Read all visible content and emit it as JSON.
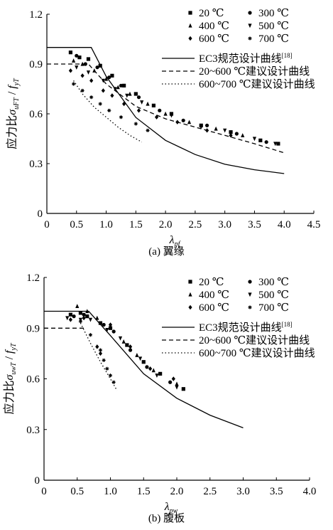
{
  "captions": {
    "a": "(a) 翼缘",
    "b": "(b) 腹板"
  },
  "chart_data": [
    {
      "type": "scatter",
      "ylabel_prefix": "应力比",
      "ylabel_num_main": "σ",
      "ylabel_num_sub": "uFT",
      "ylabel_den_main": "f",
      "ylabel_den_sub": "yT",
      "xlabel_main": "λ",
      "xlabel_sub": "pf",
      "xlim": [
        0,
        4.5
      ],
      "ylim": [
        0,
        1.2
      ],
      "xticks": [
        "0",
        "0.5",
        "1.0",
        "1.5",
        "2.0",
        "2.5",
        "3.0",
        "3.5",
        "4.0",
        "4.5"
      ],
      "yticks": [
        "0",
        "0.3",
        "0.6",
        "0.9",
        "1.2"
      ],
      "legend": {
        "series": [
          "20 ℃",
          "300 ℃",
          "400 ℃",
          "500 ℃",
          "600 ℃",
          "700 ℃"
        ],
        "curves": [
          "EC3规范设计曲线[18]",
          "20~600 ℃建议设计曲线",
          "600~700 ℃建议设计曲线"
        ],
        "placement": "top-right"
      },
      "curves": [
        {
          "name": "EC3规范设计曲线[18]",
          "style": "solid",
          "points": [
            [
              0,
              1.0
            ],
            [
              0.748,
              1.0
            ],
            [
              1.0,
              0.825
            ],
            [
              1.5,
              0.578
            ],
            [
              2.0,
              0.44
            ],
            [
              2.5,
              0.355
            ],
            [
              3.0,
              0.296
            ],
            [
              3.5,
              0.263
            ],
            [
              4.0,
              0.24
            ]
          ]
        },
        {
          "name": "20~600 ℃建议设计曲线",
          "style": "dashed",
          "points": [
            [
              0,
              0.9
            ],
            [
              0.7,
              0.9
            ],
            [
              1.0,
              0.78
            ],
            [
              1.5,
              0.645
            ],
            [
              2.0,
              0.57
            ],
            [
              2.5,
              0.52
            ],
            [
              3.0,
              0.47
            ],
            [
              3.5,
              0.42
            ],
            [
              4.0,
              0.365
            ]
          ]
        },
        {
          "name": "600~700 ℃建议设计曲线",
          "style": "dotted",
          "points": [
            [
              0.45,
              0.8
            ],
            [
              0.6,
              0.72
            ],
            [
              0.8,
              0.64
            ],
            [
              1.0,
              0.58
            ],
            [
              1.2,
              0.52
            ],
            [
              1.4,
              0.47
            ],
            [
              1.6,
              0.43
            ]
          ]
        }
      ],
      "series": [
        {
          "name": "20 ℃",
          "points": [
            [
              0.4,
              0.97
            ],
            [
              0.55,
              0.94
            ],
            [
              0.7,
              0.93
            ],
            [
              0.9,
              0.89
            ],
            [
              1.1,
              0.83
            ],
            [
              1.3,
              0.77
            ],
            [
              1.5,
              0.72
            ],
            [
              1.8,
              0.65
            ],
            [
              2.1,
              0.6
            ],
            [
              2.6,
              0.53
            ],
            [
              3.1,
              0.49
            ],
            [
              3.6,
              0.44
            ],
            [
              3.9,
              0.42
            ]
          ]
        },
        {
          "name": "300 ℃",
          "points": [
            [
              0.5,
              0.95
            ],
            [
              0.65,
              0.9
            ],
            [
              0.85,
              0.88
            ],
            [
              1.05,
              0.82
            ],
            [
              1.25,
              0.77
            ],
            [
              1.55,
              0.7
            ],
            [
              1.9,
              0.62
            ],
            [
              2.3,
              0.56
            ],
            [
              2.7,
              0.53
            ],
            [
              3.2,
              0.48
            ],
            [
              3.7,
              0.43
            ]
          ]
        },
        {
          "name": "400 ℃",
          "points": [
            [
              0.45,
              0.92
            ],
            [
              0.6,
              0.9
            ],
            [
              0.8,
              0.86
            ],
            [
              1.0,
              0.81
            ],
            [
              1.2,
              0.76
            ],
            [
              1.4,
              0.72
            ],
            [
              1.7,
              0.66
            ],
            [
              2.0,
              0.6
            ],
            [
              2.4,
              0.55
            ],
            [
              2.85,
              0.51
            ],
            [
              3.3,
              0.47
            ]
          ]
        },
        {
          "name": "500 ℃",
          "points": [
            [
              0.5,
              0.88
            ],
            [
              0.7,
              0.85
            ],
            [
              0.95,
              0.8
            ],
            [
              1.15,
              0.75
            ],
            [
              1.35,
              0.71
            ],
            [
              1.6,
              0.67
            ],
            [
              2.1,
              0.59
            ],
            [
              2.6,
              0.52
            ],
            [
              3.0,
              0.5
            ],
            [
              3.5,
              0.45
            ],
            [
              3.85,
              0.42
            ]
          ]
        },
        {
          "name": "600 ℃",
          "points": [
            [
              0.4,
              0.86
            ],
            [
              0.6,
              0.83
            ],
            [
              0.75,
              0.8
            ],
            [
              0.95,
              0.74
            ],
            [
              1.1,
              0.71
            ],
            [
              1.3,
              0.66
            ],
            [
              1.55,
              0.62
            ],
            [
              1.85,
              0.58
            ],
            [
              2.2,
              0.55
            ],
            [
              2.7,
              0.5
            ],
            [
              3.1,
              0.47
            ]
          ]
        },
        {
          "name": "700 ℃",
          "points": [
            [
              0.45,
              0.78
            ],
            [
              0.6,
              0.74
            ],
            [
              0.75,
              0.7
            ],
            [
              0.9,
              0.66
            ],
            [
              1.05,
              0.62
            ],
            [
              1.25,
              0.58
            ],
            [
              1.5,
              0.54
            ],
            [
              1.7,
              0.5
            ]
          ]
        }
      ]
    },
    {
      "type": "scatter",
      "ylabel_prefix": "应力比",
      "ylabel_num_main": "σ",
      "ylabel_num_sub": "uwT",
      "ylabel_den_main": "f",
      "ylabel_den_sub": "yT",
      "xlabel_main": "λ",
      "xlabel_sub": "pw",
      "xlim": [
        0,
        4.0
      ],
      "ylim": [
        0,
        1.2
      ],
      "xticks": [
        "0",
        "0.5",
        "1.0",
        "1.5",
        "2.0",
        "2.5",
        "3.0",
        "3.5",
        "4.0"
      ],
      "yticks": [
        "0",
        "0.3",
        "0.6",
        "0.9",
        "1.2"
      ],
      "legend": {
        "series": [
          "20 ℃",
          "300 ℃",
          "400 ℃",
          "500 ℃",
          "600 ℃",
          "700 ℃"
        ],
        "curves": [
          "EC3规范设计曲线[18]",
          "20~600 ℃建议设计曲线",
          "600~700 ℃建议设计曲线"
        ],
        "placement": "top-right"
      },
      "curves": [
        {
          "name": "EC3规范设计曲线[18]",
          "style": "solid",
          "points": [
            [
              0,
              1.0
            ],
            [
              0.673,
              1.0
            ],
            [
              1.0,
              0.856
            ],
            [
              1.5,
              0.63
            ],
            [
              2.0,
              0.485
            ],
            [
              2.5,
              0.385
            ],
            [
              3.0,
              0.31
            ]
          ]
        },
        {
          "name": "20~600 ℃建议设计曲线",
          "style": "dashed",
          "points": [
            [
              0,
              0.9
            ],
            [
              0.6,
              0.9
            ]
          ]
        },
        {
          "name": "600~700 ℃建议设计曲线",
          "style": "dotted",
          "points": [
            [
              0.55,
              0.93
            ],
            [
              0.7,
              0.81
            ],
            [
              0.85,
              0.7
            ],
            [
              1.0,
              0.6
            ],
            [
              1.1,
              0.53
            ]
          ]
        }
      ],
      "series": [
        {
          "name": "20 ℃",
          "points": [
            [
              0.4,
              0.98
            ],
            [
              0.55,
              0.99
            ],
            [
              0.65,
              0.97
            ],
            [
              0.85,
              0.93
            ],
            [
              1.0,
              0.9
            ],
            [
              1.25,
              0.8
            ],
            [
              1.5,
              0.7
            ],
            [
              1.75,
              0.63
            ],
            [
              2.1,
              0.54
            ]
          ]
        },
        {
          "name": "300 ℃",
          "points": [
            [
              0.45,
              0.97
            ],
            [
              0.6,
              0.98
            ],
            [
              0.9,
              0.92
            ],
            [
              1.05,
              0.88
            ],
            [
              1.3,
              0.77
            ],
            [
              1.55,
              0.67
            ],
            [
              1.9,
              0.58
            ]
          ]
        },
        {
          "name": "400 ℃",
          "points": [
            [
              0.5,
              1.03
            ],
            [
              0.65,
              1.0
            ],
            [
              0.8,
              0.96
            ],
            [
              1.0,
              0.91
            ],
            [
              1.2,
              0.82
            ],
            [
              1.4,
              0.74
            ],
            [
              1.65,
              0.65
            ],
            [
              2.0,
              0.57
            ]
          ]
        },
        {
          "name": "500 ℃",
          "points": [
            [
              0.35,
              0.96
            ],
            [
              0.55,
              0.95
            ],
            [
              0.7,
              0.95
            ],
            [
              0.95,
              0.89
            ],
            [
              1.15,
              0.84
            ],
            [
              1.45,
              0.72
            ],
            [
              1.7,
              0.62
            ],
            [
              2.0,
              0.55
            ]
          ]
        },
        {
          "name": "600 ℃",
          "points": [
            [
              0.4,
              0.95
            ],
            [
              0.6,
              0.96
            ],
            [
              0.8,
              0.79
            ],
            [
              0.85,
              0.75
            ],
            [
              1.0,
              0.92
            ],
            [
              1.3,
              0.79
            ],
            [
              1.6,
              0.66
            ],
            [
              1.95,
              0.6
            ]
          ]
        },
        {
          "name": "700 ℃",
          "points": [
            [
              0.55,
              0.94
            ],
            [
              0.7,
              0.86
            ],
            [
              0.85,
              0.77
            ],
            [
              0.9,
              0.71
            ],
            [
              0.95,
              0.66
            ],
            [
              1.0,
              0.62
            ],
            [
              1.05,
              0.58
            ]
          ]
        }
      ]
    }
  ]
}
